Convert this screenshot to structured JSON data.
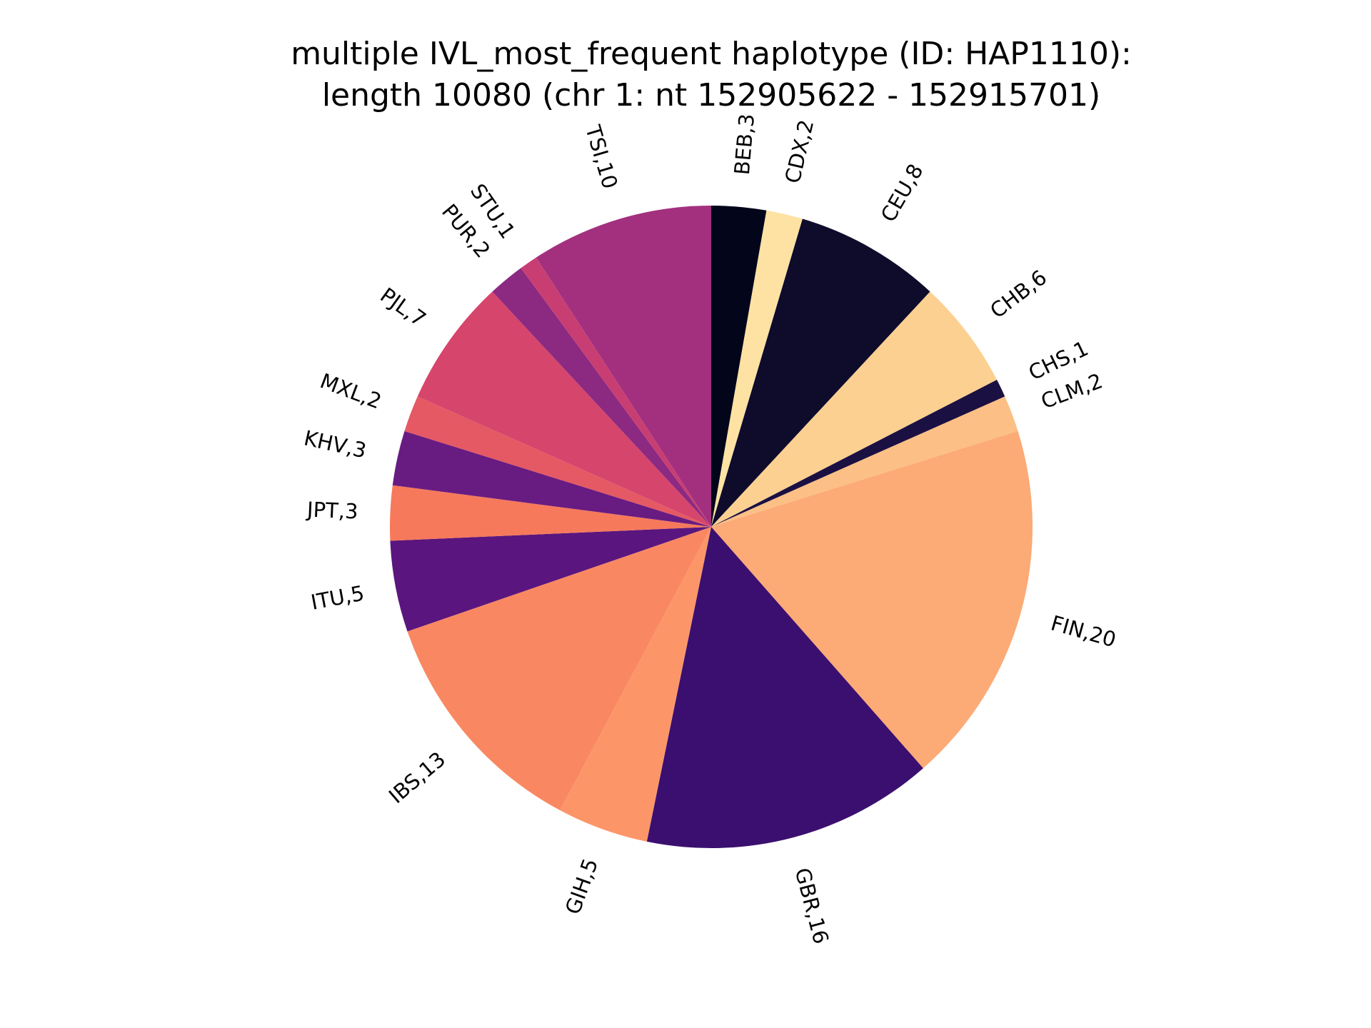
{
  "chart_data": {
    "type": "pie",
    "title_lines": [
      "multiple IVL_most_frequent haplotype (ID: HAP1110):",
      "length 10080 (chr 1: nt 152905622 - 152915701)"
    ],
    "start_angle": "top (12 o'clock)",
    "direction": "clockwise",
    "slices": [
      {
        "name": "BEB",
        "value": 3,
        "label": "BEB,3",
        "color": "#03051a"
      },
      {
        "name": "CDX",
        "value": 2,
        "label": "CDX,2",
        "color": "#fde2a3"
      },
      {
        "name": "CEU",
        "value": 8,
        "label": "CEU,8",
        "color": "#0e0b2b"
      },
      {
        "name": "CHB",
        "value": 6,
        "label": "CHB,6",
        "color": "#fcd091"
      },
      {
        "name": "CHS",
        "value": 1,
        "label": "CHS,1",
        "color": "#1a1042"
      },
      {
        "name": "CLM",
        "value": 2,
        "label": "CLM,2",
        "color": "#fcbf85"
      },
      {
        "name": "FIN",
        "value": 20,
        "label": "FIN,20",
        "color": "#fcaa76"
      },
      {
        "name": "GBR",
        "value": 16,
        "label": "GBR,16",
        "color": "#3b0f6f"
      },
      {
        "name": "GIH",
        "value": 5,
        "label": "GIH,5",
        "color": "#fc9669"
      },
      {
        "name": "IBS",
        "value": 13,
        "label": "IBS,13",
        "color": "#f98862"
      },
      {
        "name": "ITU",
        "value": 5,
        "label": "ITU,5",
        "color": "#5a167e"
      },
      {
        "name": "JPT",
        "value": 3,
        "label": "JPT,3",
        "color": "#f6795c"
      },
      {
        "name": "KHV",
        "value": 3,
        "label": "KHV,3",
        "color": "#681c81"
      },
      {
        "name": "MXL",
        "value": 2,
        "label": "MXL,2",
        "color": "#e55964"
      },
      {
        "name": "PJL",
        "value": 7,
        "label": "PJL,7",
        "color": "#d6456c"
      },
      {
        "name": "PUR",
        "value": 2,
        "label": "PUR,2",
        "color": "#8c2981"
      },
      {
        "name": "STU",
        "value": 1,
        "label": "STU,1",
        "color": "#c83e73"
      },
      {
        "name": "TSI",
        "value": 10,
        "label": "TSI,10",
        "color": "#a3307e"
      }
    ]
  }
}
